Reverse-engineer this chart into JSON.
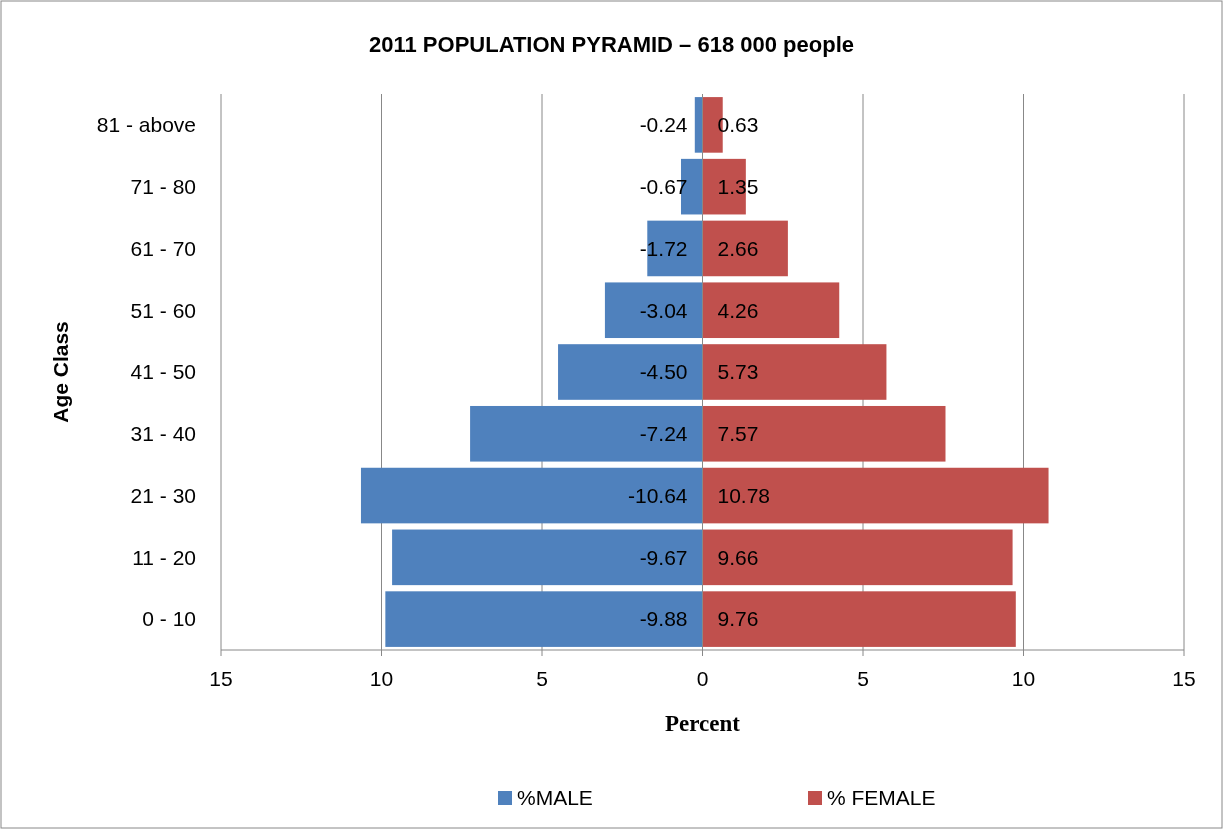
{
  "chart_data": {
    "type": "bar",
    "orientation": "horizontal",
    "title": "2011 POPULATION PYRAMID – 618 000 people",
    "xlabel": "Percent",
    "ylabel": "Age Class",
    "categories": [
      "81 - above",
      "71 - 80",
      "61 - 70",
      "51 - 60",
      "41 - 50",
      "31 - 40",
      "21 - 30",
      "11 - 20",
      "0 - 10"
    ],
    "series": [
      {
        "name": "%MALE",
        "color": "#4f81bd",
        "values": [
          -0.24,
          -0.67,
          -1.72,
          -3.04,
          -4.5,
          -7.24,
          -10.64,
          -9.67,
          -9.88
        ],
        "value_labels": [
          "-0.24",
          "-0.67",
          "-1.72",
          "-3.04",
          "-4.50",
          "-7.24",
          "-10.64",
          "-9.67",
          "-9.88"
        ]
      },
      {
        "name": "% FEMALE",
        "color": "#c0504d",
        "values": [
          0.63,
          1.35,
          2.66,
          4.26,
          5.73,
          7.57,
          10.78,
          9.66,
          9.76
        ],
        "value_labels": [
          "0.63",
          "1.35",
          "2.66",
          "4.26",
          "5.73",
          "7.57",
          "10.78",
          "9.66",
          "9.76"
        ]
      }
    ],
    "xlim": [
      -15,
      15
    ],
    "xticks": [
      {
        "value": -15,
        "label": "15"
      },
      {
        "value": -10,
        "label": "10"
      },
      {
        "value": -5,
        "label": "5"
      },
      0,
      5,
      10,
      {
        "value": 15,
        "label": "15"
      }
    ],
    "grid": "x",
    "legend": "bottom",
    "stacked": true
  }
}
